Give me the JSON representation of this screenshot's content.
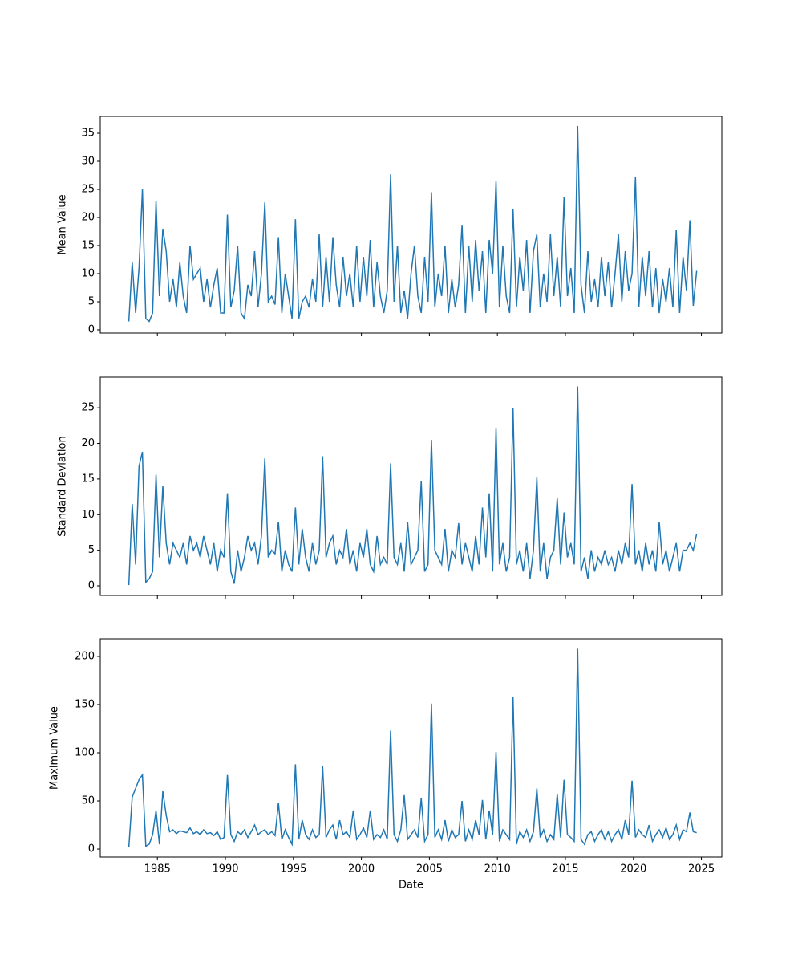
{
  "chart_data": {
    "type": "line",
    "xlabel": "Date",
    "x": [
      1982.9,
      1983.15,
      1983.4,
      1983.65,
      1983.9,
      1984.15,
      1984.4,
      1984.65,
      1984.9,
      1985.15,
      1985.4,
      1985.65,
      1985.9,
      1986.15,
      1986.4,
      1986.65,
      1986.9,
      1987.15,
      1987.4,
      1987.65,
      1987.9,
      1988.15,
      1988.4,
      1988.65,
      1988.9,
      1989.15,
      1989.4,
      1989.65,
      1989.9,
      1990.15,
      1990.4,
      1990.65,
      1990.9,
      1991.15,
      1991.4,
      1991.65,
      1991.9,
      1992.15,
      1992.4,
      1992.65,
      1992.9,
      1993.15,
      1993.4,
      1993.65,
      1993.9,
      1994.15,
      1994.4,
      1994.65,
      1994.9,
      1995.15,
      1995.4,
      1995.65,
      1995.9,
      1996.15,
      1996.4,
      1996.65,
      1996.9,
      1997.15,
      1997.4,
      1997.65,
      1997.9,
      1998.15,
      1998.4,
      1998.65,
      1998.9,
      1999.15,
      1999.4,
      1999.65,
      1999.9,
      2000.15,
      2000.4,
      2000.65,
      2000.9,
      2001.15,
      2001.4,
      2001.65,
      2001.9,
      2002.15,
      2002.4,
      2002.65,
      2002.9,
      2003.15,
      2003.4,
      2003.65,
      2003.9,
      2004.15,
      2004.4,
      2004.65,
      2004.9,
      2005.15,
      2005.4,
      2005.65,
      2005.9,
      2006.15,
      2006.4,
      2006.65,
      2006.9,
      2007.15,
      2007.4,
      2007.65,
      2007.9,
      2008.15,
      2008.4,
      2008.65,
      2008.9,
      2009.15,
      2009.4,
      2009.65,
      2009.9,
      2010.15,
      2010.4,
      2010.65,
      2010.9,
      2011.15,
      2011.4,
      2011.65,
      2011.9,
      2012.15,
      2012.4,
      2012.65,
      2012.9,
      2013.15,
      2013.4,
      2013.65,
      2013.9,
      2014.15,
      2014.4,
      2014.65,
      2014.9,
      2015.15,
      2015.4,
      2015.65,
      2015.9,
      2016.15,
      2016.4,
      2016.65,
      2016.9,
      2017.15,
      2017.4,
      2017.65,
      2017.9,
      2018.15,
      2018.4,
      2018.65,
      2018.9,
      2019.15,
      2019.4,
      2019.65,
      2019.9,
      2020.15,
      2020.4,
      2020.65,
      2020.9,
      2021.15,
      2021.4,
      2021.65,
      2021.9,
      2022.15,
      2022.4,
      2022.65,
      2022.9,
      2023.15,
      2023.4,
      2023.65,
      2023.9,
      2024.15,
      2024.4,
      2024.65
    ],
    "xlim": [
      1980.8,
      2026.5
    ],
    "xticks": [
      1985,
      1990,
      1995,
      2000,
      2005,
      2010,
      2015,
      2020,
      2025
    ],
    "panels": [
      {
        "ylabel": "Mean Value",
        "ylim": [
          -0.57,
          38
        ],
        "yticks": [
          0,
          5,
          10,
          15,
          20,
          25,
          30,
          35
        ],
        "color": "#1f77b4",
        "values": [
          1.5,
          12,
          3,
          11,
          25,
          2,
          1.5,
          3,
          23,
          6,
          18,
          14,
          5,
          9,
          4,
          12,
          6,
          3,
          15,
          9,
          10,
          11,
          5,
          9,
          4,
          8,
          11,
          3,
          3,
          20.5,
          4,
          7,
          15,
          3,
          2,
          8,
          6,
          14,
          4,
          10,
          22.7,
          5,
          6,
          4.5,
          16.5,
          3,
          10,
          6,
          2,
          19.7,
          2,
          5,
          6,
          4,
          9,
          5,
          17,
          4,
          13,
          5,
          16.5,
          8,
          4,
          13,
          6,
          10,
          4,
          15,
          5,
          13,
          6,
          16,
          4,
          12,
          6,
          3,
          7,
          27.7,
          5,
          15,
          3,
          7,
          2,
          10,
          15,
          6,
          3,
          13,
          5,
          24.5,
          4,
          10,
          6,
          15,
          3,
          9,
          4,
          8,
          18.7,
          3,
          15,
          5,
          16,
          7,
          14,
          3,
          16,
          10,
          26.5,
          4,
          15,
          6,
          3,
          21.5,
          4,
          13,
          7,
          16,
          3,
          14,
          17,
          4,
          10,
          5,
          17,
          6,
          13,
          4,
          23.7,
          6,
          11,
          3,
          36.3,
          8,
          3,
          14,
          5,
          9,
          4,
          13,
          6,
          12,
          4,
          10,
          17,
          5,
          14,
          7,
          10,
          27.2,
          4,
          13,
          6,
          14,
          4,
          11,
          3,
          9,
          5,
          11,
          4,
          17.8,
          3,
          13,
          7,
          19.5,
          4.3,
          10.5
        ]
      },
      {
        "ylabel": "Standard Deviation",
        "ylim": [
          -1.35,
          29.3
        ],
        "yticks": [
          0,
          5,
          10,
          15,
          20,
          25
        ],
        "color": "#1f77b4",
        "values": [
          0.1,
          11.5,
          3,
          16.8,
          18.8,
          0.5,
          1,
          2,
          15.6,
          4,
          14,
          6,
          3,
          6,
          5,
          4,
          6,
          3,
          7,
          5,
          6,
          4,
          7,
          5,
          3,
          6,
          2,
          5,
          4,
          13,
          2,
          0.3,
          5,
          2,
          4,
          7,
          5,
          6,
          3,
          7,
          17.9,
          4,
          5,
          4.5,
          9,
          2,
          5,
          3,
          2,
          11,
          3,
          8,
          4,
          2,
          6,
          3,
          5,
          18.2,
          4,
          6,
          7,
          3,
          5,
          4,
          8,
          3,
          5,
          2,
          6,
          4,
          8,
          3,
          2,
          7,
          3,
          4,
          3,
          17.2,
          4,
          3,
          6,
          2,
          9,
          3,
          4,
          5,
          14.7,
          2,
          3,
          20.5,
          5,
          4,
          3,
          8,
          2,
          5,
          4,
          8.8,
          3,
          6,
          4,
          2,
          7,
          3,
          11,
          4,
          13,
          2,
          22.2,
          3,
          6,
          2,
          4,
          25,
          3,
          5,
          2,
          6,
          1,
          5,
          15.2,
          2,
          6,
          1,
          4,
          5,
          12.3,
          3,
          10.3,
          4,
          6,
          3,
          28,
          2,
          4,
          1,
          5,
          2,
          4,
          3,
          5,
          3,
          4,
          2,
          5,
          3,
          6,
          4,
          14.3,
          3,
          5,
          2,
          6,
          3,
          5,
          2,
          9,
          3,
          5,
          2,
          4,
          6,
          2,
          5,
          5,
          6,
          5,
          7.3
        ]
      },
      {
        "ylabel": "Maximum Value",
        "ylim": [
          -8.3,
          218.3
        ],
        "yticks": [
          0,
          50,
          100,
          150,
          200
        ],
        "color": "#1f77b4",
        "values": [
          2,
          54,
          63,
          72,
          77,
          3,
          5,
          15,
          40,
          5,
          60,
          35,
          18,
          20,
          16,
          19,
          18,
          17,
          22,
          16,
          18,
          15,
          20,
          16,
          17,
          14,
          18,
          10,
          12,
          77,
          15,
          8,
          18,
          15,
          20,
          12,
          18,
          25,
          15,
          18,
          20,
          15,
          18,
          14,
          48,
          10,
          20,
          12,
          5,
          88,
          10,
          30,
          15,
          10,
          20,
          12,
          15,
          86,
          12,
          20,
          25,
          10,
          30,
          15,
          18,
          12,
          40,
          10,
          15,
          22,
          12,
          40,
          10,
          15,
          12,
          20,
          10,
          123,
          15,
          8,
          20,
          56,
          10,
          15,
          20,
          12,
          53,
          8,
          15,
          151,
          12,
          20,
          10,
          30,
          8,
          20,
          12,
          15,
          50,
          8,
          20,
          10,
          30,
          15,
          51,
          10,
          40,
          15,
          101,
          8,
          20,
          15,
          10,
          158,
          5,
          18,
          12,
          20,
          8,
          18,
          63,
          12,
          20,
          8,
          15,
          10,
          57,
          12,
          72,
          15,
          12,
          8,
          208,
          10,
          5,
          15,
          18,
          8,
          15,
          20,
          10,
          18,
          8,
          15,
          20,
          10,
          30,
          15,
          71,
          12,
          20,
          15,
          12,
          25,
          8,
          15,
          20,
          12,
          22,
          10,
          15,
          25,
          10,
          20,
          18,
          38,
          18,
          17
        ]
      }
    ]
  }
}
